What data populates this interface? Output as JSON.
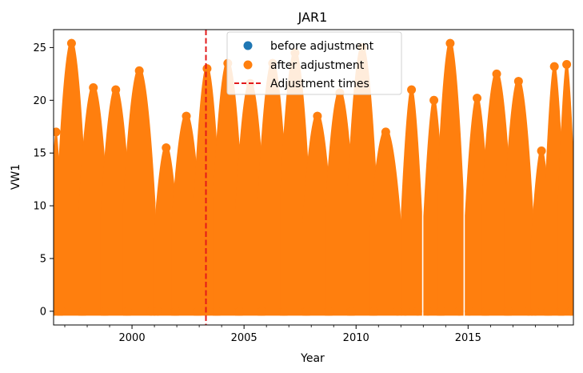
{
  "chart_data": {
    "type": "scatter",
    "title": "JAR1",
    "xlabel": "Year",
    "ylabel": "VW1",
    "xlim": [
      1996.5,
      2019.7
    ],
    "ylim": [
      -1.3,
      26.7
    ],
    "xticks": [
      2000,
      2005,
      2010,
      2015
    ],
    "xtick_labels": [
      "2000",
      "2005",
      "2010",
      "2015"
    ],
    "yticks": [
      0,
      5,
      10,
      15,
      20,
      25
    ],
    "ytick_labels": [
      "0",
      "5",
      "10",
      "15",
      "20",
      "25"
    ],
    "grid": false,
    "legend_position": "top-center",
    "legend": [
      {
        "label": "before adjustment",
        "kind": "marker",
        "color": "#1f77b4"
      },
      {
        "label": "after adjustment",
        "kind": "marker",
        "color": "#ff7f0e"
      },
      {
        "label": "Adjustment times",
        "kind": "dashed-line",
        "color": "#e31a1c"
      }
    ],
    "series": [
      {
        "name": "before adjustment",
        "color": "#1f77b4",
        "note_values_hidden_under_after": true,
        "seasons": []
      },
      {
        "name": "after adjustment",
        "color": "#ff7f0e",
        "min": 0,
        "seasons": [
          {
            "start": 1996.5,
            "end": 1996.72,
            "max": 17.0
          },
          {
            "start": 1996.85,
            "end": 1997.75,
            "max": 25.4
          },
          {
            "start": 1997.8,
            "end": 1998.75,
            "max": 21.2
          },
          {
            "start": 1998.8,
            "end": 1999.75,
            "max": 21.0
          },
          {
            "start": 1999.8,
            "end": 2000.85,
            "max": 22.8
          },
          {
            "start": 2001.15,
            "end": 2001.9,
            "max": 15.5
          },
          {
            "start": 2001.95,
            "end": 2002.9,
            "max": 18.5
          },
          {
            "start": 2002.95,
            "end": 2003.75,
            "max": 23.0
          },
          {
            "start": 2003.8,
            "end": 2004.75,
            "max": 23.5
          },
          {
            "start": 2004.8,
            "end": 2005.75,
            "max": 21.6
          },
          {
            "start": 2005.8,
            "end": 2006.75,
            "max": 23.5
          },
          {
            "start": 2006.8,
            "end": 2007.75,
            "max": 24.5
          },
          {
            "start": 2007.8,
            "end": 2008.75,
            "max": 18.5
          },
          {
            "start": 2008.8,
            "end": 2009.75,
            "max": 20.7
          },
          {
            "start": 2009.8,
            "end": 2010.75,
            "max": 25.0
          },
          {
            "start": 2010.8,
            "end": 2011.85,
            "max": 17.0
          },
          {
            "start": 2012.2,
            "end": 2012.75,
            "max": 21.0
          },
          {
            "start": 2013.2,
            "end": 2013.75,
            "max": 20.0
          },
          {
            "start": 2013.8,
            "end": 2014.6,
            "max": 25.4
          },
          {
            "start": 2015.05,
            "end": 2015.75,
            "max": 20.2
          },
          {
            "start": 2015.8,
            "end": 2016.75,
            "max": 22.5
          },
          {
            "start": 2016.8,
            "end": 2017.7,
            "max": 21.8
          },
          {
            "start": 2018.0,
            "end": 2018.55,
            "max": 15.2
          },
          {
            "start": 2018.6,
            "end": 2019.1,
            "max": 23.2
          },
          {
            "start": 2019.2,
            "end": 2019.6,
            "max": 23.4
          }
        ]
      }
    ],
    "adjustment_times": [
      2003.3
    ],
    "colors": {
      "before": "#1f77b4",
      "after": "#ff7f0e",
      "adjustment": "#e31a1c"
    }
  }
}
